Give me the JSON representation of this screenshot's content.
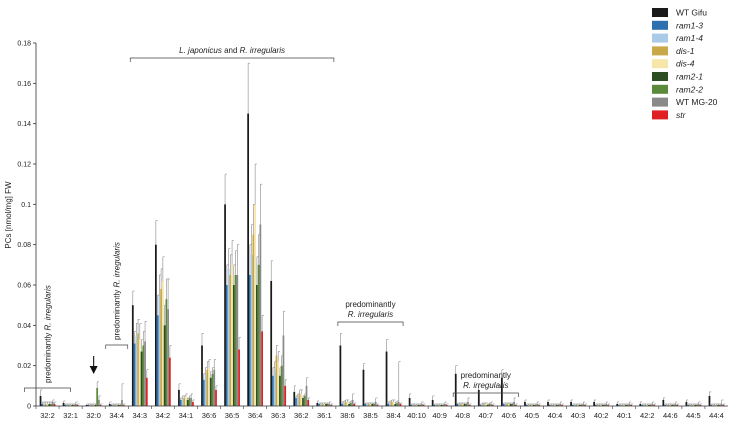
{
  "chart_data": {
    "type": "bar",
    "ylabel": "PCs [nmol/mg] FW",
    "ylim": [
      0,
      0.18
    ],
    "yticks": [
      0,
      0.02,
      0.04,
      0.06,
      0.08,
      0.1,
      0.12,
      0.14,
      0.16,
      0.18
    ],
    "ytick_labels": [
      "0",
      "0.02",
      "0.04",
      "0.06",
      "0.08",
      "0.1",
      "0.12",
      "0.14",
      "0.16",
      "0.18"
    ],
    "categories": [
      "32:2",
      "32:1",
      "32:0",
      "34:4",
      "34:3",
      "34:2",
      "34:1",
      "36:6",
      "36:5",
      "36:4",
      "36:3",
      "36:2",
      "36:1",
      "38:6",
      "38:5",
      "38:4",
      "40:10",
      "40:9",
      "40:8",
      "40:7",
      "40:6",
      "40:5",
      "40:4",
      "40:3",
      "40:2",
      "40:1",
      "42:2",
      "44:6",
      "44:5",
      "44:4"
    ],
    "legend_position": "top-right",
    "series": [
      {
        "name": "WT Gifu",
        "italic": false,
        "color": "#1a1a1a",
        "values": [
          0.005,
          0.0015,
          0.0005,
          0.001,
          0.05,
          0.08,
          0.008,
          0.03,
          0.1,
          0.145,
          0.062,
          0.007,
          0.0015,
          0.03,
          0.018,
          0.027,
          0.004,
          0.003,
          0.016,
          0.008,
          0.014,
          0.002,
          0.002,
          0.002,
          0.002,
          0.001,
          0.001,
          0.003,
          0.002,
          0.005
        ],
        "errors": [
          0.003,
          0.001,
          0.0005,
          0.001,
          0.007,
          0.012,
          0.003,
          0.006,
          0.015,
          0.025,
          0.01,
          0.003,
          0.001,
          0.006,
          0.003,
          0.006,
          0.002,
          0.002,
          0.004,
          0.003,
          0.004,
          0.001,
          0.001,
          0.001,
          0.001,
          0.001,
          0.001,
          0.001,
          0.001,
          0.002
        ]
      },
      {
        "name": "ram1-3",
        "italic": true,
        "color": "#2e6fb0",
        "values": [
          0.001,
          0.0005,
          0.0005,
          0.0005,
          0.031,
          0.045,
          0.003,
          0.013,
          0.06,
          0.065,
          0.015,
          0.004,
          0.001,
          0.001,
          0.001,
          0.001,
          0.0005,
          0.0005,
          0.001,
          0.0005,
          0.001,
          0.0005,
          0.0005,
          0.0005,
          0.0005,
          0.0005,
          0.0005,
          0.0005,
          0.0005,
          0.0005
        ],
        "errors": [
          0.001,
          0.0005,
          0.0005,
          0.0005,
          0.006,
          0.01,
          0.001,
          0.003,
          0.01,
          0.015,
          0.004,
          0.001,
          0.0005,
          0.001,
          0.0005,
          0.001,
          0.0005,
          0.0005,
          0.0005,
          0.0005,
          0.0005,
          0.0005,
          0.0005,
          0.0005,
          0.0005,
          0.0005,
          0.0005,
          0.0005,
          0.0005,
          0.0005
        ]
      },
      {
        "name": "ram1-4",
        "italic": true,
        "color": "#a9cbe8",
        "values": [
          0.001,
          0.0005,
          0.0005,
          0.0005,
          0.035,
          0.055,
          0.004,
          0.016,
          0.068,
          0.075,
          0.018,
          0.005,
          0.001,
          0.0015,
          0.001,
          0.0015,
          0.0005,
          0.0005,
          0.001,
          0.001,
          0.001,
          0.0005,
          0.0005,
          0.0005,
          0.0005,
          0.0005,
          0.0005,
          0.0005,
          0.0005,
          0.0005
        ],
        "errors": [
          0.001,
          0.0005,
          0.0005,
          0.0005,
          0.006,
          0.01,
          0.001,
          0.003,
          0.01,
          0.015,
          0.004,
          0.001,
          0.0005,
          0.001,
          0.0005,
          0.001,
          0.0005,
          0.0005,
          0.0005,
          0.0005,
          0.0005,
          0.0005,
          0.0005,
          0.0005,
          0.0005,
          0.0005,
          0.0005,
          0.0005,
          0.0005,
          0.0005
        ]
      },
      {
        "name": "dis-1",
        "italic": true,
        "color": "#c9a84a",
        "values": [
          0.001,
          0.0005,
          0.0005,
          0.0005,
          0.036,
          0.058,
          0.004,
          0.018,
          0.065,
          0.085,
          0.025,
          0.006,
          0.001,
          0.002,
          0.001,
          0.002,
          0.0005,
          0.0005,
          0.001,
          0.001,
          0.001,
          0.0005,
          0.0005,
          0.0005,
          0.0005,
          0.0005,
          0.0005,
          0.0005,
          0.0005,
          0.0005
        ],
        "errors": [
          0.001,
          0.0005,
          0.0005,
          0.0005,
          0.007,
          0.01,
          0.001,
          0.004,
          0.01,
          0.015,
          0.005,
          0.002,
          0.0005,
          0.001,
          0.0005,
          0.001,
          0.0005,
          0.0005,
          0.0005,
          0.0005,
          0.0005,
          0.0005,
          0.0005,
          0.0005,
          0.0005,
          0.0005,
          0.0005,
          0.0005,
          0.0005,
          0.0005
        ]
      },
      {
        "name": "dis-4",
        "italic": true,
        "color": "#f6e6a8",
        "values": [
          0.001,
          0.0005,
          0.0005,
          0.0005,
          0.033,
          0.062,
          0.005,
          0.019,
          0.07,
          0.1,
          0.022,
          0.006,
          0.001,
          0.002,
          0.001,
          0.002,
          0.0005,
          0.0005,
          0.001,
          0.001,
          0.001,
          0.0005,
          0.0005,
          0.0005,
          0.0005,
          0.0005,
          0.0005,
          0.0005,
          0.0005,
          0.0005
        ],
        "errors": [
          0.001,
          0.0005,
          0.0005,
          0.0005,
          0.008,
          0.012,
          0.001,
          0.004,
          0.012,
          0.02,
          0.005,
          0.002,
          0.0005,
          0.001,
          0.0005,
          0.001,
          0.0005,
          0.0005,
          0.0005,
          0.0005,
          0.0005,
          0.0005,
          0.0005,
          0.0005,
          0.0005,
          0.0005,
          0.0005,
          0.0005,
          0.0005,
          0.0005
        ]
      },
      {
        "name": "ram2-1",
        "italic": true,
        "color": "#2d4d22",
        "values": [
          0.001,
          0.0005,
          0.0005,
          0.0005,
          0.027,
          0.04,
          0.003,
          0.014,
          0.06,
          0.06,
          0.015,
          0.004,
          0.001,
          0.001,
          0.001,
          0.001,
          0.0005,
          0.0005,
          0.001,
          0.0005,
          0.001,
          0.0005,
          0.0005,
          0.0005,
          0.0005,
          0.0005,
          0.0005,
          0.0005,
          0.0005,
          0.0005
        ],
        "errors": [
          0.001,
          0.0005,
          0.0005,
          0.0005,
          0.006,
          0.01,
          0.001,
          0.003,
          0.01,
          0.014,
          0.004,
          0.001,
          0.0005,
          0.001,
          0.0005,
          0.001,
          0.0005,
          0.0005,
          0.0005,
          0.0005,
          0.0005,
          0.0005,
          0.0005,
          0.0005,
          0.0005,
          0.0005,
          0.0005,
          0.0005,
          0.0005,
          0.0005
        ]
      },
      {
        "name": "ram2-2",
        "italic": true,
        "color": "#5b8a3a",
        "values": [
          0.001,
          0.0005,
          0.009,
          0.0005,
          0.03,
          0.053,
          0.004,
          0.016,
          0.065,
          0.07,
          0.02,
          0.005,
          0.001,
          0.0015,
          0.001,
          0.0015,
          0.0005,
          0.0005,
          0.001,
          0.001,
          0.001,
          0.0005,
          0.0005,
          0.0005,
          0.0005,
          0.0005,
          0.0005,
          0.0005,
          0.0005,
          0.0005
        ],
        "errors": [
          0.001,
          0.0005,
          0.003,
          0.0005,
          0.007,
          0.01,
          0.001,
          0.003,
          0.012,
          0.015,
          0.005,
          0.001,
          0.0005,
          0.001,
          0.0005,
          0.001,
          0.0005,
          0.0005,
          0.0005,
          0.0005,
          0.0005,
          0.0005,
          0.0005,
          0.0005,
          0.0005,
          0.0005,
          0.0005,
          0.0005,
          0.0005,
          0.0005
        ]
      },
      {
        "name": "WT MG-20",
        "italic": false,
        "color": "#8a8a8a",
        "values": [
          0.002,
          0.001,
          0.003,
          0.003,
          0.032,
          0.048,
          0.004,
          0.018,
          0.065,
          0.09,
          0.035,
          0.01,
          0.001,
          0.003,
          0.002,
          0.002,
          0.001,
          0.001,
          0.002,
          0.001,
          0.002,
          0.001,
          0.001,
          0.001,
          0.001,
          0.001,
          0.001,
          0.001,
          0.001,
          0.001
        ],
        "errors": [
          0.001,
          0.001,
          0.002,
          0.008,
          0.01,
          0.015,
          0.002,
          0.005,
          0.015,
          0.02,
          0.012,
          0.004,
          0.001,
          0.003,
          0.002,
          0.02,
          0.001,
          0.001,
          0.002,
          0.001,
          0.002,
          0.001,
          0.001,
          0.001,
          0.001,
          0.001,
          0.001,
          0.001,
          0.001,
          0.002
        ]
      },
      {
        "name": "str",
        "italic": true,
        "color": "#e02020",
        "values": [
          0.001,
          0.0005,
          0.0005,
          0.0005,
          0.014,
          0.024,
          0.002,
          0.008,
          0.028,
          0.037,
          0.01,
          0.003,
          0.0005,
          0.001,
          0.0005,
          0.001,
          0.0005,
          0.0005,
          0.0005,
          0.0005,
          0.0005,
          0.0005,
          0.0005,
          0.0005,
          0.0005,
          0.0005,
          0.0005,
          0.0005,
          0.0005,
          0.0005
        ],
        "errors": [
          0.001,
          0.0005,
          0.0005,
          0.0005,
          0.004,
          0.006,
          0.001,
          0.002,
          0.006,
          0.008,
          0.003,
          0.001,
          0.0005,
          0.0005,
          0.0005,
          0.0005,
          0.0005,
          0.0005,
          0.0005,
          0.0005,
          0.0005,
          0.0005,
          0.0005,
          0.0005,
          0.0005,
          0.0005,
          0.0005,
          0.0005,
          0.0005,
          0.0005
        ]
      }
    ],
    "annotations": {
      "bracket_main": {
        "text_plain": "and",
        "text_it1": "L. japonicus",
        "text_it2": "R. irregularis",
        "from": "34:3",
        "to": "36:1"
      },
      "bracket_38": {
        "line1": "predominantly",
        "line2": "R. irregularis",
        "from": "38:6",
        "to": "38:4"
      },
      "bracket_40": {
        "line1": "predominantly",
        "line2": "R. irregularis",
        "from": "40:8",
        "to": "40:6"
      },
      "vertical_32": {
        "plain": "predominantly",
        "italic": "R. irregularis",
        "category": "32:2"
      },
      "vertical_34": {
        "plain": "predominantly",
        "italic": "R. irregularis",
        "category": "34:4"
      },
      "arrow": {
        "category": "32:0"
      }
    }
  }
}
